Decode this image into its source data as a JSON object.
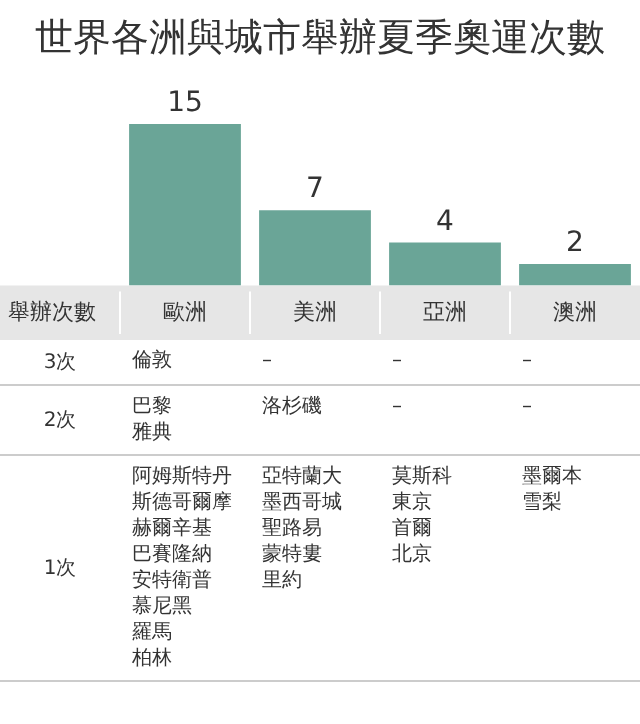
{
  "chart_data": [
    {
      "type": "bar",
      "title": "世界各洲與城市舉辦夏季奧運次數",
      "xlabel": "舉辦次數",
      "categories": [
        "歐洲",
        "美洲",
        "亞洲",
        "澳洲"
      ],
      "values": [
        15,
        7,
        4,
        2
      ],
      "color": "#6aa597",
      "data_labels": true,
      "tick_labels": "x",
      "grid": false,
      "legend": false
    },
    {
      "type": "other",
      "y_categories": [
        "3次",
        "2次",
        "1次"
      ],
      "cell_labels": [
        [
          [
            "倫敦"
          ],
          [
            "–"
          ],
          [
            "–"
          ],
          [
            "–"
          ]
        ],
        [
          [
            "巴黎",
            "雅典"
          ],
          [
            "洛杉磯"
          ],
          [
            "–"
          ],
          [
            "–"
          ]
        ],
        [
          [
            "阿姆斯特丹",
            "斯德哥爾摩",
            "赫爾辛基",
            "巴賽隆納",
            "安特衛普",
            "慕尼黑",
            "羅馬",
            "柏林"
          ],
          [
            "亞特蘭大",
            "墨西哥城",
            "聖路易",
            "蒙特婁",
            "里約"
          ],
          [
            "莫斯科",
            "東京",
            "首爾",
            "北京"
          ],
          [
            "墨爾本",
            "雪梨"
          ]
        ]
      ]
    }
  ]
}
